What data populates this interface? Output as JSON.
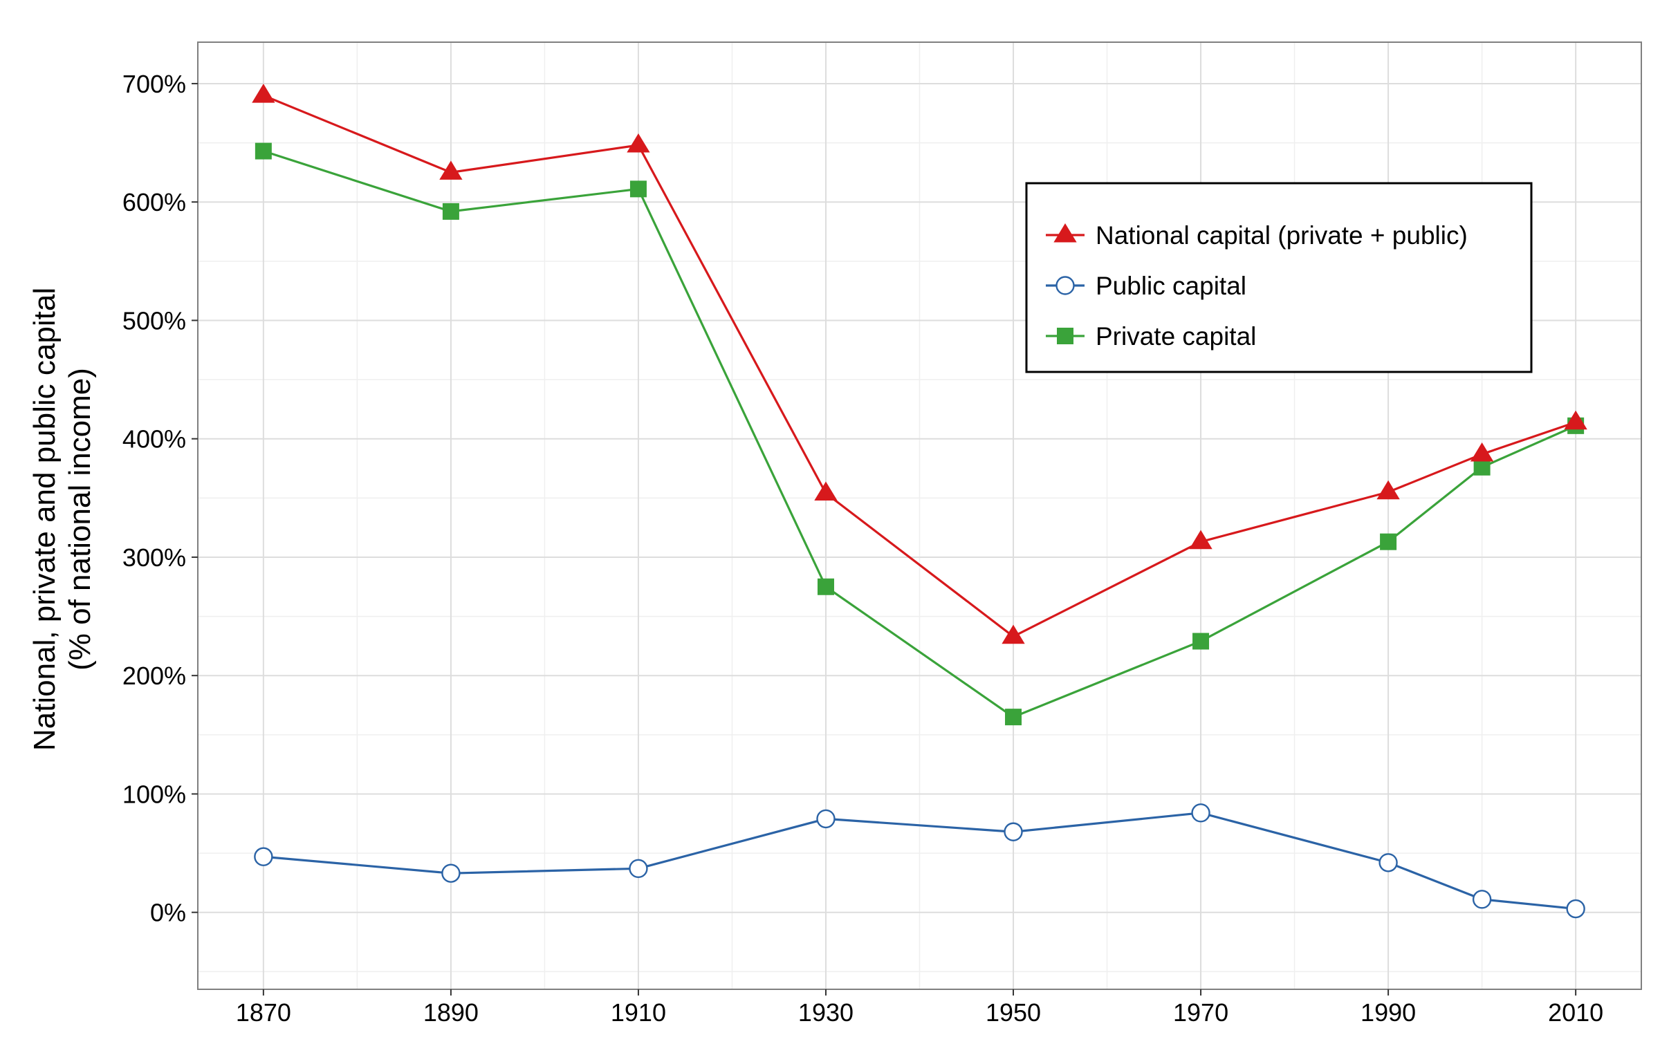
{
  "chart_data": {
    "type": "line",
    "x": [
      1870,
      1890,
      1910,
      1930,
      1950,
      1970,
      1990,
      2000,
      2010
    ],
    "x_ticks": [
      1870,
      1890,
      1910,
      1930,
      1950,
      1970,
      1990,
      2010
    ],
    "x_tick_labels": [
      "1870",
      "1890",
      "1910",
      "1930",
      "1950",
      "1970",
      "1990",
      "2010"
    ],
    "xlim": [
      1863,
      2017
    ],
    "ylim": [
      -65,
      735
    ],
    "y_ticks": [
      0,
      100,
      200,
      300,
      400,
      500,
      600,
      700
    ],
    "y_tick_labels": [
      "0%",
      "100%",
      "200%",
      "300%",
      "400%",
      "500%",
      "600%",
      "700%"
    ],
    "ylabel_line1": "National, private and public capital",
    "ylabel_line2": "(% of national income)",
    "xlabel": "",
    "grid": true,
    "legend_position": "top-right",
    "series": [
      {
        "name": "National capital (private + public)",
        "color": "#d7191c",
        "marker": "triangle",
        "values": [
          690,
          625,
          648,
          354,
          233,
          313,
          355,
          387,
          414
        ]
      },
      {
        "name": "Public capital",
        "color": "#2b63a6",
        "marker": "open-circle",
        "values": [
          47,
          33,
          37,
          79,
          68,
          84,
          42,
          11,
          3
        ]
      },
      {
        "name": "Private capital",
        "color": "#3aa33a",
        "marker": "square",
        "values": [
          643,
          592,
          611,
          275,
          165,
          229,
          313,
          376,
          411
        ]
      }
    ]
  }
}
